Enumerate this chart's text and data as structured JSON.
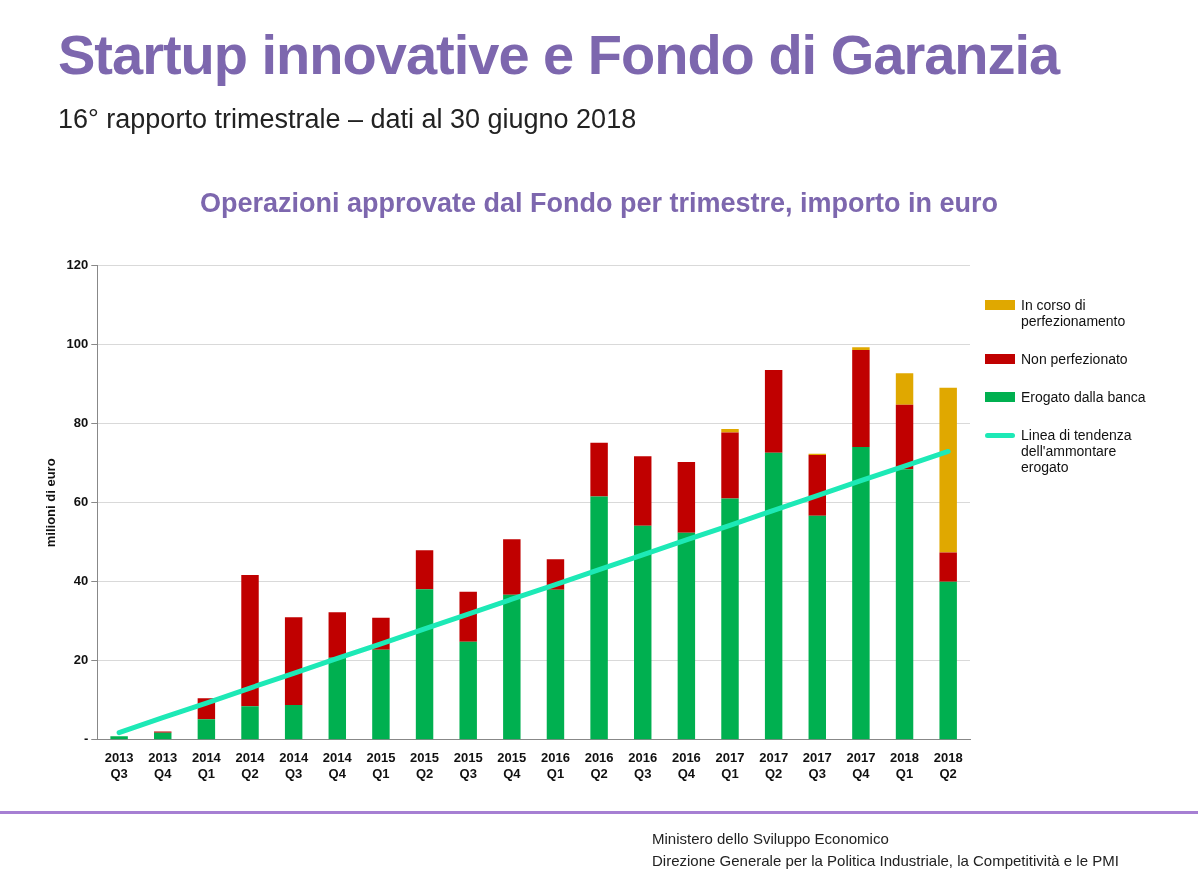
{
  "chart_data": {
    "type": "bar",
    "title": "Startup innovative e Fondo di Garanzia",
    "subtitle": "16° rapporto trimestrale – dati al 30 giugno 2018",
    "annotations": [
      "Operazioni approvate dal Fondo per trimestre, importo in euro",
      "Ministero dello Sviluppo Economico",
      "Direzione Generale per la Politica Industriale, la Competitività e le PMI"
    ],
    "ylabel": "milioni di euro",
    "stacked": true,
    "grid": "y",
    "legend": "right",
    "categories": [
      "2013 Q3",
      "2013 Q4",
      "2014 Q1",
      "2014 Q2",
      "2014 Q3",
      "2014 Q4",
      "2015 Q1",
      "2015 Q2",
      "2015 Q3",
      "2015 Q4",
      "2016 Q1",
      "2016 Q2",
      "2016 Q3",
      "2016 Q4",
      "2017 Q1",
      "2017 Q2",
      "2017 Q3",
      "2017 Q4",
      "2018 Q1",
      "2018 Q2"
    ],
    "ylim": [
      0,
      120
    ],
    "yticks": [
      {
        "value": 0,
        "label": "-"
      },
      20,
      40,
      60,
      80,
      100,
      120
    ],
    "series": [
      {
        "name": "Erogato dalla banca",
        "color": "#00b050",
        "values": [
          0.9,
          1.8,
          5.2,
          8.5,
          8.8,
          20.8,
          22.8,
          38.1,
          24.8,
          36.7,
          38.0,
          61.6,
          54.2,
          52.4,
          61.1,
          72.7,
          56.7,
          74.1,
          68.5,
          40.0
        ]
      },
      {
        "name": "Non perfezionato",
        "color": "#c00000",
        "values": [
          0,
          0.3,
          5.3,
          33.2,
          22.2,
          11.5,
          8.1,
          9.9,
          12.7,
          14.1,
          7.7,
          13.6,
          17.6,
          17.9,
          16.7,
          20.9,
          15.4,
          24.6,
          16.3,
          7.4
        ]
      },
      {
        "name": "In corso di perfezionamento",
        "color": "#e0a800",
        "values": [
          0,
          0,
          0,
          0,
          0,
          0,
          0,
          0,
          0,
          0,
          0,
          0,
          0,
          0,
          0.9,
          0,
          0.3,
          0.7,
          8.0,
          41.7
        ]
      },
      {
        "name": "Linea di tendenza dell'ammontare erogato",
        "type": "line",
        "color": "#1de9b6",
        "marker": "none",
        "line_style": "solid",
        "values": [
          1.8,
          5.6,
          9.3,
          13.1,
          16.8,
          20.6,
          24.3,
          28.1,
          31.8,
          35.6,
          39.3,
          43.1,
          46.8,
          50.6,
          54.3,
          58.1,
          61.8,
          65.6,
          69.3,
          73.0
        ]
      }
    ]
  }
}
